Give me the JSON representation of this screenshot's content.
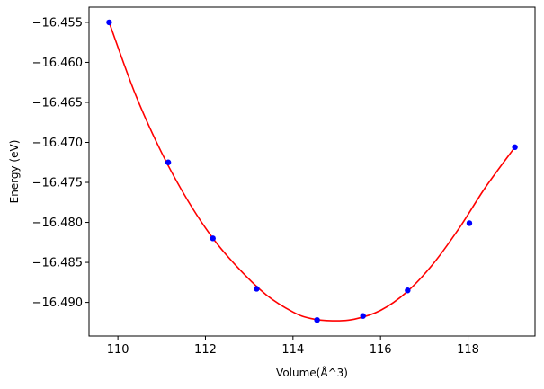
{
  "chart_data": {
    "type": "scatter",
    "title": "",
    "xlabel": "Volume(Å^3)",
    "ylabel": "Energy (eV)",
    "xlim": [
      109.34,
      119.53
    ],
    "ylim": [
      -16.4942,
      -16.4531
    ],
    "xticks": [
      110,
      112,
      114,
      116,
      118
    ],
    "xtick_labels": [
      "110",
      "112",
      "114",
      "116",
      "118"
    ],
    "yticks": [
      -16.455,
      -16.46,
      -16.465,
      -16.47,
      -16.475,
      -16.48,
      -16.485,
      -16.49
    ],
    "ytick_labels": [
      "−16.455",
      "−16.460",
      "−16.465",
      "−16.470",
      "−16.475",
      "−16.480",
      "−16.485",
      "−16.490"
    ],
    "grid": false,
    "series": [
      {
        "kind": "scatter",
        "color": "#0000ff",
        "x": [
          109.8,
          111.15,
          112.17,
          113.17,
          114.55,
          115.6,
          116.62,
          118.03,
          119.07
        ],
        "y": [
          -16.455,
          -16.4725,
          -16.482,
          -16.4883,
          -16.4922,
          -16.4917,
          -16.4885,
          -16.4801,
          -16.4706
        ]
      },
      {
        "kind": "fit-curve",
        "color": "#ff0000",
        "x": [
          109.8,
          110.4,
          111.0,
          111.6,
          112.2,
          112.8,
          113.4,
          114.0,
          114.4,
          114.9,
          115.4,
          116.0,
          116.6,
          117.2,
          117.8,
          118.4,
          119.07
        ],
        "y": [
          -16.455,
          -16.464,
          -16.4713,
          -16.4773,
          -16.4822,
          -16.486,
          -16.4891,
          -16.4912,
          -16.492,
          -16.4923,
          -16.4921,
          -16.491,
          -16.4887,
          -16.4852,
          -16.4807,
          -16.4756,
          -16.4706
        ]
      }
    ]
  }
}
